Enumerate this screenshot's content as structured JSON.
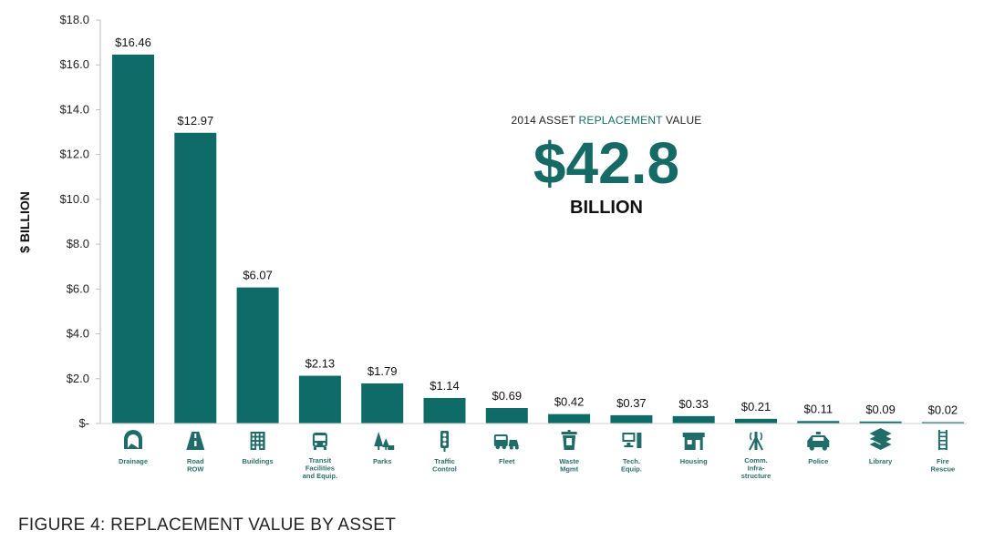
{
  "chart_data": {
    "type": "bar",
    "categories": [
      "Drainage",
      "Road ROW",
      "Buildings",
      "Transit Facilities and Equip.",
      "Parks",
      "Traffic Control",
      "Fleet",
      "Waste Mgmt",
      "Tech. Equip.",
      "Housing",
      "Comm. Infra-structure",
      "Police",
      "Library",
      "Fire Rescue"
    ],
    "values": [
      16.46,
      12.97,
      6.07,
      2.13,
      1.79,
      1.14,
      0.69,
      0.42,
      0.37,
      0.33,
      0.21,
      0.11,
      0.09,
      0.02
    ],
    "value_labels": [
      "$16.46",
      "$12.97",
      "$6.07",
      "$2.13",
      "$1.79",
      "$1.14",
      "$0.69",
      "$0.42",
      "$0.37",
      "$0.33",
      "$0.21",
      "$0.11",
      "$0.09",
      "$0.02"
    ],
    "category_lines": [
      [
        "Drainage"
      ],
      [
        "Road",
        "ROW"
      ],
      [
        "Buildings"
      ],
      [
        "Transit",
        "Facilities",
        "and Equip."
      ],
      [
        "Parks"
      ],
      [
        "Traffic",
        "Control"
      ],
      [
        "Fleet"
      ],
      [
        "Waste",
        "Mgmt"
      ],
      [
        "Tech.",
        "Equip."
      ],
      [
        "Housing"
      ],
      [
        "Comm.",
        "Infra-",
        "structure"
      ],
      [
        "Police"
      ],
      [
        "Library"
      ],
      [
        "Fire",
        "Rescue"
      ]
    ],
    "icons": [
      "drainage-icon",
      "road-icon",
      "building-icon",
      "bus-icon",
      "trees-icon",
      "traffic-light-icon",
      "vehicles-icon",
      "waste-bin-icon",
      "computer-icon",
      "housing-icon",
      "tower-icon",
      "police-car-icon",
      "books-icon",
      "fire-ladder-icon"
    ],
    "ylim": [
      0,
      18
    ],
    "yticks": [
      0,
      2,
      4,
      6,
      8,
      10,
      12,
      14,
      16,
      18
    ],
    "ytick_labels": [
      "$-",
      "$2.0",
      "$4.0",
      "$6.0",
      "$8.0",
      "$10.0",
      "$12.0",
      "$14.0",
      "$16.0",
      "$18.0"
    ],
    "ylabel": "$ BILLION",
    "xlabel": "",
    "grid": false,
    "bar_color": "#0e6b68",
    "icon_color": "#1f6c68"
  },
  "callout": {
    "prefix": "2014 ASSET ",
    "accent": "REPLACEMENT",
    "suffix": " VALUE",
    "value": "$42.8",
    "unit": "BILLION"
  },
  "caption": "FIGURE 4:  REPLACEMENT VALUE BY ASSET"
}
